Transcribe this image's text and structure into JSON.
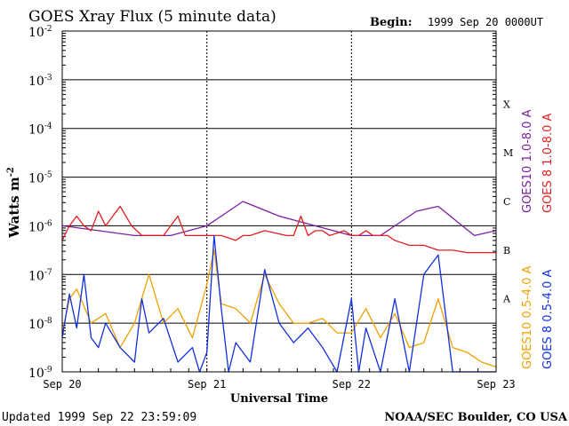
{
  "chart_data": {
    "type": "line",
    "title": "GOES Xray Flux (5 minute data)",
    "begin_label": "Begin:",
    "begin_value": "1999 Sep 20 0000UT",
    "xlabel": "Universal Time",
    "ylabel": "Watts m",
    "ylabel_sup": "-2",
    "yscale": "log",
    "ylim": [
      1e-09,
      0.01
    ],
    "y_ticks": [
      {
        "exp": -2,
        "base": "10",
        "sup": "-2"
      },
      {
        "exp": -3,
        "base": "10",
        "sup": "-3"
      },
      {
        "exp": -4,
        "base": "10",
        "sup": "-4"
      },
      {
        "exp": -5,
        "base": "10",
        "sup": "-5"
      },
      {
        "exp": -6,
        "base": "10",
        "sup": "-6"
      },
      {
        "exp": -7,
        "base": "10",
        "sup": "-7"
      },
      {
        "exp": -8,
        "base": "10",
        "sup": "-8"
      },
      {
        "exp": -9,
        "base": "10",
        "sup": "-9"
      }
    ],
    "x_ticks": [
      "Sep 20",
      "Sep 21",
      "Sep 22",
      "Sep 23"
    ],
    "flare_classes": [
      {
        "label": "X",
        "exp": -3.5
      },
      {
        "label": "M",
        "exp": -4.5
      },
      {
        "label": "C",
        "exp": -5.5
      },
      {
        "label": "B",
        "exp": -6.5
      },
      {
        "label": "A",
        "exp": -7.5
      }
    ],
    "grid": true,
    "series": [
      {
        "name": "GOES10 1.0-8.0 A",
        "color": "#7b1fa2",
        "points": [
          [
            0.0,
            -6.0
          ],
          [
            0.25,
            -6.1
          ],
          [
            0.5,
            -6.2
          ],
          [
            0.75,
            -6.2
          ],
          [
            1.0,
            -6.0
          ],
          [
            1.25,
            -5.5
          ],
          [
            1.5,
            -5.8
          ],
          [
            2.0,
            -6.2
          ],
          [
            2.2,
            -6.2
          ],
          [
            2.45,
            -5.7
          ],
          [
            2.6,
            -5.6
          ],
          [
            2.85,
            -6.2
          ],
          [
            3.0,
            -6.1
          ]
        ]
      },
      {
        "name": "GOES 8 1.0-8.0 A",
        "color": "#e02020",
        "points": [
          [
            0.0,
            -6.3
          ],
          [
            0.05,
            -6.0
          ],
          [
            0.1,
            -5.8
          ],
          [
            0.15,
            -6.0
          ],
          [
            0.2,
            -6.1
          ],
          [
            0.25,
            -5.7
          ],
          [
            0.3,
            -6.0
          ],
          [
            0.4,
            -5.6
          ],
          [
            0.48,
            -6.0
          ],
          [
            0.55,
            -6.2
          ],
          [
            0.7,
            -6.2
          ],
          [
            0.8,
            -5.8
          ],
          [
            0.85,
            -6.2
          ],
          [
            0.9,
            -6.2
          ],
          [
            1.0,
            -6.2
          ],
          [
            1.1,
            -6.2
          ],
          [
            1.2,
            -6.3
          ],
          [
            1.25,
            -6.2
          ],
          [
            1.3,
            -6.2
          ],
          [
            1.4,
            -6.1
          ],
          [
            1.55,
            -6.2
          ],
          [
            1.6,
            -6.2
          ],
          [
            1.65,
            -5.8
          ],
          [
            1.7,
            -6.2
          ],
          [
            1.75,
            -6.1
          ],
          [
            1.8,
            -6.1
          ],
          [
            1.85,
            -6.2
          ],
          [
            1.95,
            -6.1
          ],
          [
            2.0,
            -6.2
          ],
          [
            2.05,
            -6.2
          ],
          [
            2.1,
            -6.1
          ],
          [
            2.15,
            -6.2
          ],
          [
            2.2,
            -6.2
          ],
          [
            2.25,
            -6.2
          ],
          [
            2.3,
            -6.3
          ],
          [
            2.4,
            -6.4
          ],
          [
            2.5,
            -6.4
          ],
          [
            2.6,
            -6.5
          ],
          [
            2.7,
            -6.5
          ],
          [
            2.8,
            -6.55
          ],
          [
            2.9,
            -6.55
          ],
          [
            3.0,
            -6.55
          ]
        ]
      },
      {
        "name": "GOES10 0.5-4.0 A",
        "color": "#f0a000",
        "points": [
          [
            0.0,
            -8.2
          ],
          [
            0.05,
            -7.5
          ],
          [
            0.1,
            -7.3
          ],
          [
            0.2,
            -8.0
          ],
          [
            0.3,
            -7.8
          ],
          [
            0.4,
            -8.5
          ],
          [
            0.5,
            -8.0
          ],
          [
            0.6,
            -7.0
          ],
          [
            0.7,
            -8.0
          ],
          [
            0.8,
            -7.7
          ],
          [
            0.9,
            -8.3
          ],
          [
            1.0,
            -7.2
          ],
          [
            1.05,
            -6.5
          ],
          [
            1.1,
            -7.6
          ],
          [
            1.2,
            -7.7
          ],
          [
            1.3,
            -8.0
          ],
          [
            1.4,
            -7.0
          ],
          [
            1.5,
            -7.6
          ],
          [
            1.6,
            -8.0
          ],
          [
            1.7,
            -8.0
          ],
          [
            1.8,
            -7.9
          ],
          [
            1.9,
            -8.2
          ],
          [
            2.0,
            -8.2
          ],
          [
            2.1,
            -7.7
          ],
          [
            2.2,
            -8.3
          ],
          [
            2.3,
            -7.8
          ],
          [
            2.4,
            -8.5
          ],
          [
            2.5,
            -8.4
          ],
          [
            2.6,
            -7.5
          ],
          [
            2.7,
            -8.5
          ],
          [
            2.8,
            -8.6
          ],
          [
            2.9,
            -8.8
          ],
          [
            3.0,
            -8.9
          ]
        ]
      },
      {
        "name": "GOES 8 0.5-4.0 A",
        "color": "#1030e0",
        "points": [
          [
            0.0,
            -8.3
          ],
          [
            0.05,
            -7.4
          ],
          [
            0.1,
            -8.1
          ],
          [
            0.15,
            -7.0
          ],
          [
            0.2,
            -8.3
          ],
          [
            0.25,
            -8.5
          ],
          [
            0.3,
            -8.0
          ],
          [
            0.4,
            -8.5
          ],
          [
            0.5,
            -8.8
          ],
          [
            0.55,
            -7.5
          ],
          [
            0.6,
            -8.2
          ],
          [
            0.7,
            -7.9
          ],
          [
            0.8,
            -8.8
          ],
          [
            0.9,
            -8.5
          ],
          [
            0.95,
            -9.0
          ],
          [
            1.0,
            -8.6
          ],
          [
            1.05,
            -6.2
          ],
          [
            1.1,
            -7.7
          ],
          [
            1.15,
            -9.0
          ],
          [
            1.2,
            -8.4
          ],
          [
            1.3,
            -8.8
          ],
          [
            1.4,
            -6.9
          ],
          [
            1.5,
            -8.0
          ],
          [
            1.6,
            -8.4
          ],
          [
            1.7,
            -8.1
          ],
          [
            1.8,
            -8.5
          ],
          [
            1.9,
            -9.0
          ],
          [
            2.0,
            -7.5
          ],
          [
            2.05,
            -9.0
          ],
          [
            2.1,
            -8.1
          ],
          [
            2.2,
            -9.0
          ],
          [
            2.3,
            -7.5
          ],
          [
            2.4,
            -9.0
          ],
          [
            2.5,
            -7.0
          ],
          [
            2.6,
            -6.6
          ],
          [
            2.7,
            -9.0
          ],
          [
            2.8,
            -9.0
          ],
          [
            3.0,
            -9.0
          ]
        ]
      }
    ]
  },
  "footer": {
    "updated": "Updated 1999 Sep 22 23:59:09",
    "credit": "NOAA/SEC Boulder, CO USA"
  },
  "colors": {
    "background": "#ffffff",
    "frame": "#000000"
  }
}
